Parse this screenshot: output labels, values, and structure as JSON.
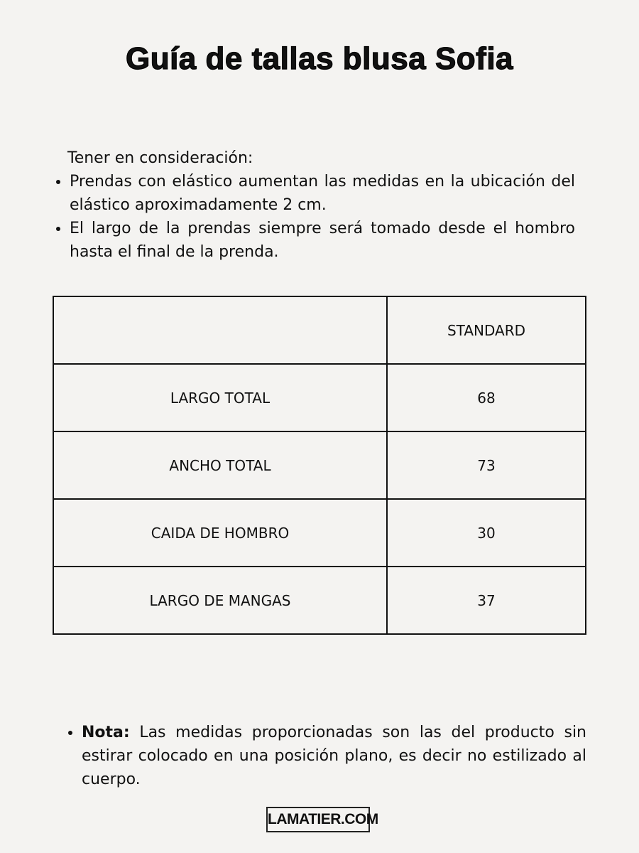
{
  "title": "Guía de tallas blusa Sofia",
  "notes": {
    "heading": "Tener en consideración:",
    "items": [
      "Prendas con elástico aumentan las medidas en la ubicación del elástico aproximadamente 2 cm.",
      "El largo de la prendas siempre será tomado desde el hombro hasta el final de la prenda."
    ]
  },
  "table": {
    "header": [
      "",
      "STANDARD"
    ],
    "rows": [
      [
        "LARGO TOTAL",
        "68"
      ],
      [
        "ANCHO TOTAL",
        "73"
      ],
      [
        "CAIDA DE HOMBRO",
        "30"
      ],
      [
        "LARGO DE MANGAS",
        "37"
      ]
    ]
  },
  "nota": {
    "label": "Nota:",
    "text": " Las medidas proporcionadas son las del producto sin estirar colocado en una posición plano, es decir no estilizado al cuerpo."
  },
  "footer": {
    "site": "LAMATIER.COM"
  }
}
